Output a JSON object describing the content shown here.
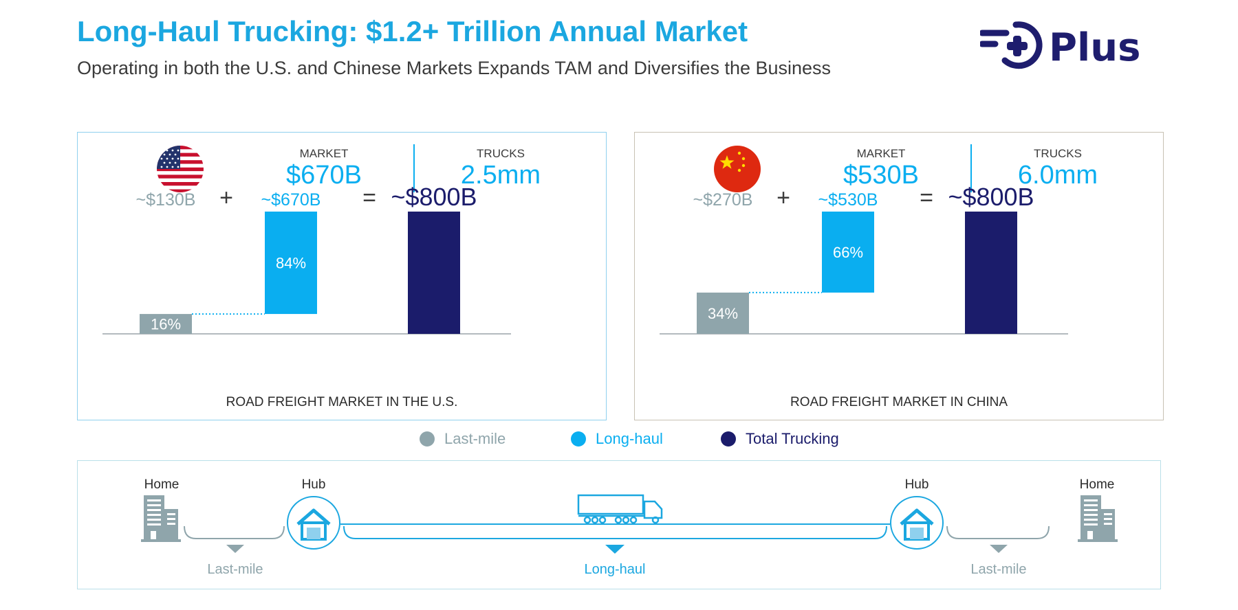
{
  "title": "Long-Haul Trucking: $1.2+ Trillion Annual Market",
  "subtitle": "Operating in both the U.S. and Chinese Markets Expands TAM and Diversifies the Business",
  "logo": {
    "text": "Plus",
    "color": "#1e1d6e"
  },
  "colors": {
    "last_mile": "#8fa5ab",
    "long_haul": "#0aaef0",
    "total": "#1b1c6b",
    "accent": "#1ba7e0"
  },
  "chart_data": [
    {
      "type": "bar",
      "title": "ROAD FREIGHT MARKET IN THE U.S.",
      "flag": "us-flag-icon",
      "market_label": "MARKET",
      "market_value": "$670B",
      "trucks_label": "TRUCKS",
      "trucks_value": "2.5mm",
      "categories": [
        "Last-mile",
        "Long-haul",
        "Total Trucking"
      ],
      "values": [
        130,
        670,
        800
      ],
      "value_labels": [
        "~$130B",
        "~$670B",
        "~$800B"
      ],
      "pct_labels": [
        "16%",
        "84%",
        ""
      ],
      "operators": [
        "+",
        "="
      ],
      "waterfall": true
    },
    {
      "type": "bar",
      "title": "ROAD FREIGHT MARKET IN CHINA",
      "flag": "china-flag-icon",
      "market_label": "MARKET",
      "market_value": "$530B",
      "trucks_label": "TRUCKS",
      "trucks_value": "6.0mm",
      "categories": [
        "Last-mile",
        "Long-haul",
        "Total Trucking"
      ],
      "values": [
        270,
        530,
        800
      ],
      "value_labels": [
        "~$270B",
        "~$530B",
        "~$800B"
      ],
      "pct_labels": [
        "34%",
        "66%",
        ""
      ],
      "operators": [
        "+",
        "="
      ],
      "waterfall": true
    }
  ],
  "legend": [
    "Last-mile",
    "Long-haul",
    "Total Trucking"
  ],
  "route": {
    "home_left": "Home",
    "hub_left": "Hub",
    "hub_right": "Hub",
    "home_right": "Home",
    "seg_left": "Last-mile",
    "seg_mid": "Long-haul",
    "seg_right": "Last-mile"
  }
}
